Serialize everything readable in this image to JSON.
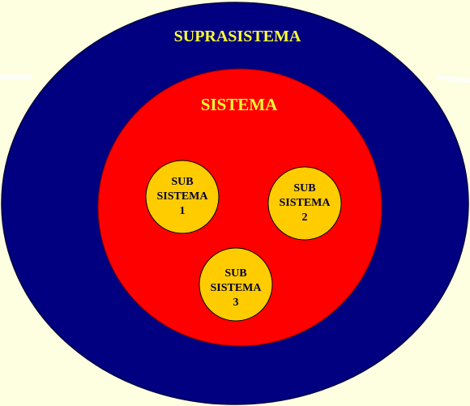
{
  "suprasistema": {
    "label": "SUPRASISTEMA",
    "fill": "#000080",
    "text_color": "#ffff33"
  },
  "sistema": {
    "label": "SISTEMA",
    "fill": "#ff0000",
    "text_color": "#ffff33"
  },
  "subsistemas": [
    {
      "line1": "SUB",
      "line2": "SISTEMA",
      "line3": "1"
    },
    {
      "line1": "SUB",
      "line2": "SISTEMA",
      "line3": "2"
    },
    {
      "line1": "SUB",
      "line2": "SISTEMA",
      "line3": "3"
    }
  ],
  "subsistema_style": {
    "fill": "#ffcc00",
    "text_color": "#000033"
  },
  "background": "#fefee0"
}
